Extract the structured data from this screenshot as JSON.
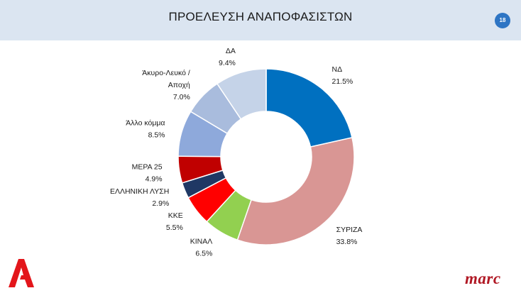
{
  "header": {
    "title": "ΠΡΟΕΛΕΥΣΗ ΑΝΑΠΟΦΑΣΙΣΤΩΝ",
    "page_number": "18"
  },
  "brand": {
    "left_logo": "alpha-logo",
    "right_logo_text": "marc"
  },
  "chart_data": {
    "type": "pie",
    "subtype": "donut",
    "title": "",
    "value_format": "percent",
    "slices": [
      {
        "label": "ΝΔ",
        "value_label": "21.5%",
        "value": 21.5,
        "color": "#0070c0"
      },
      {
        "label": "ΣΥΡΙΖΑ",
        "value_label": "33.8%",
        "value": 33.8,
        "color": "#d99694"
      },
      {
        "label": "ΚΙΝΑΛ",
        "value_label": "6.5%",
        "value": 6.5,
        "color": "#92d050"
      },
      {
        "label": "ΚΚΕ",
        "value_label": "5.5%",
        "value": 5.5,
        "color": "#ff0000"
      },
      {
        "label": "ΕΛΛΗΝΙΚΗ ΛΥΣΗ",
        "value_label": "2.9%",
        "value": 2.9,
        "color": "#1f3864"
      },
      {
        "label": "ΜΕΡΑ 25",
        "value_label": "4.9%",
        "value": 4.9,
        "color": "#c00000"
      },
      {
        "label": "Άλλο κόμμα",
        "value_label": "8.5%",
        "value": 8.5,
        "color": "#8ea9db"
      },
      {
        "label": "Άκυρο-Λευκό / Αποχή",
        "label_lines": [
          "Άκυρο-Λευκό /",
          "Αποχή"
        ],
        "value_label": "7.0%",
        "value": 7.0,
        "color": "#a9bcdd"
      },
      {
        "label": "ΔΑ",
        "value_label": "9.4%",
        "value": 9.4,
        "color": "#c5d3e8"
      }
    ]
  }
}
